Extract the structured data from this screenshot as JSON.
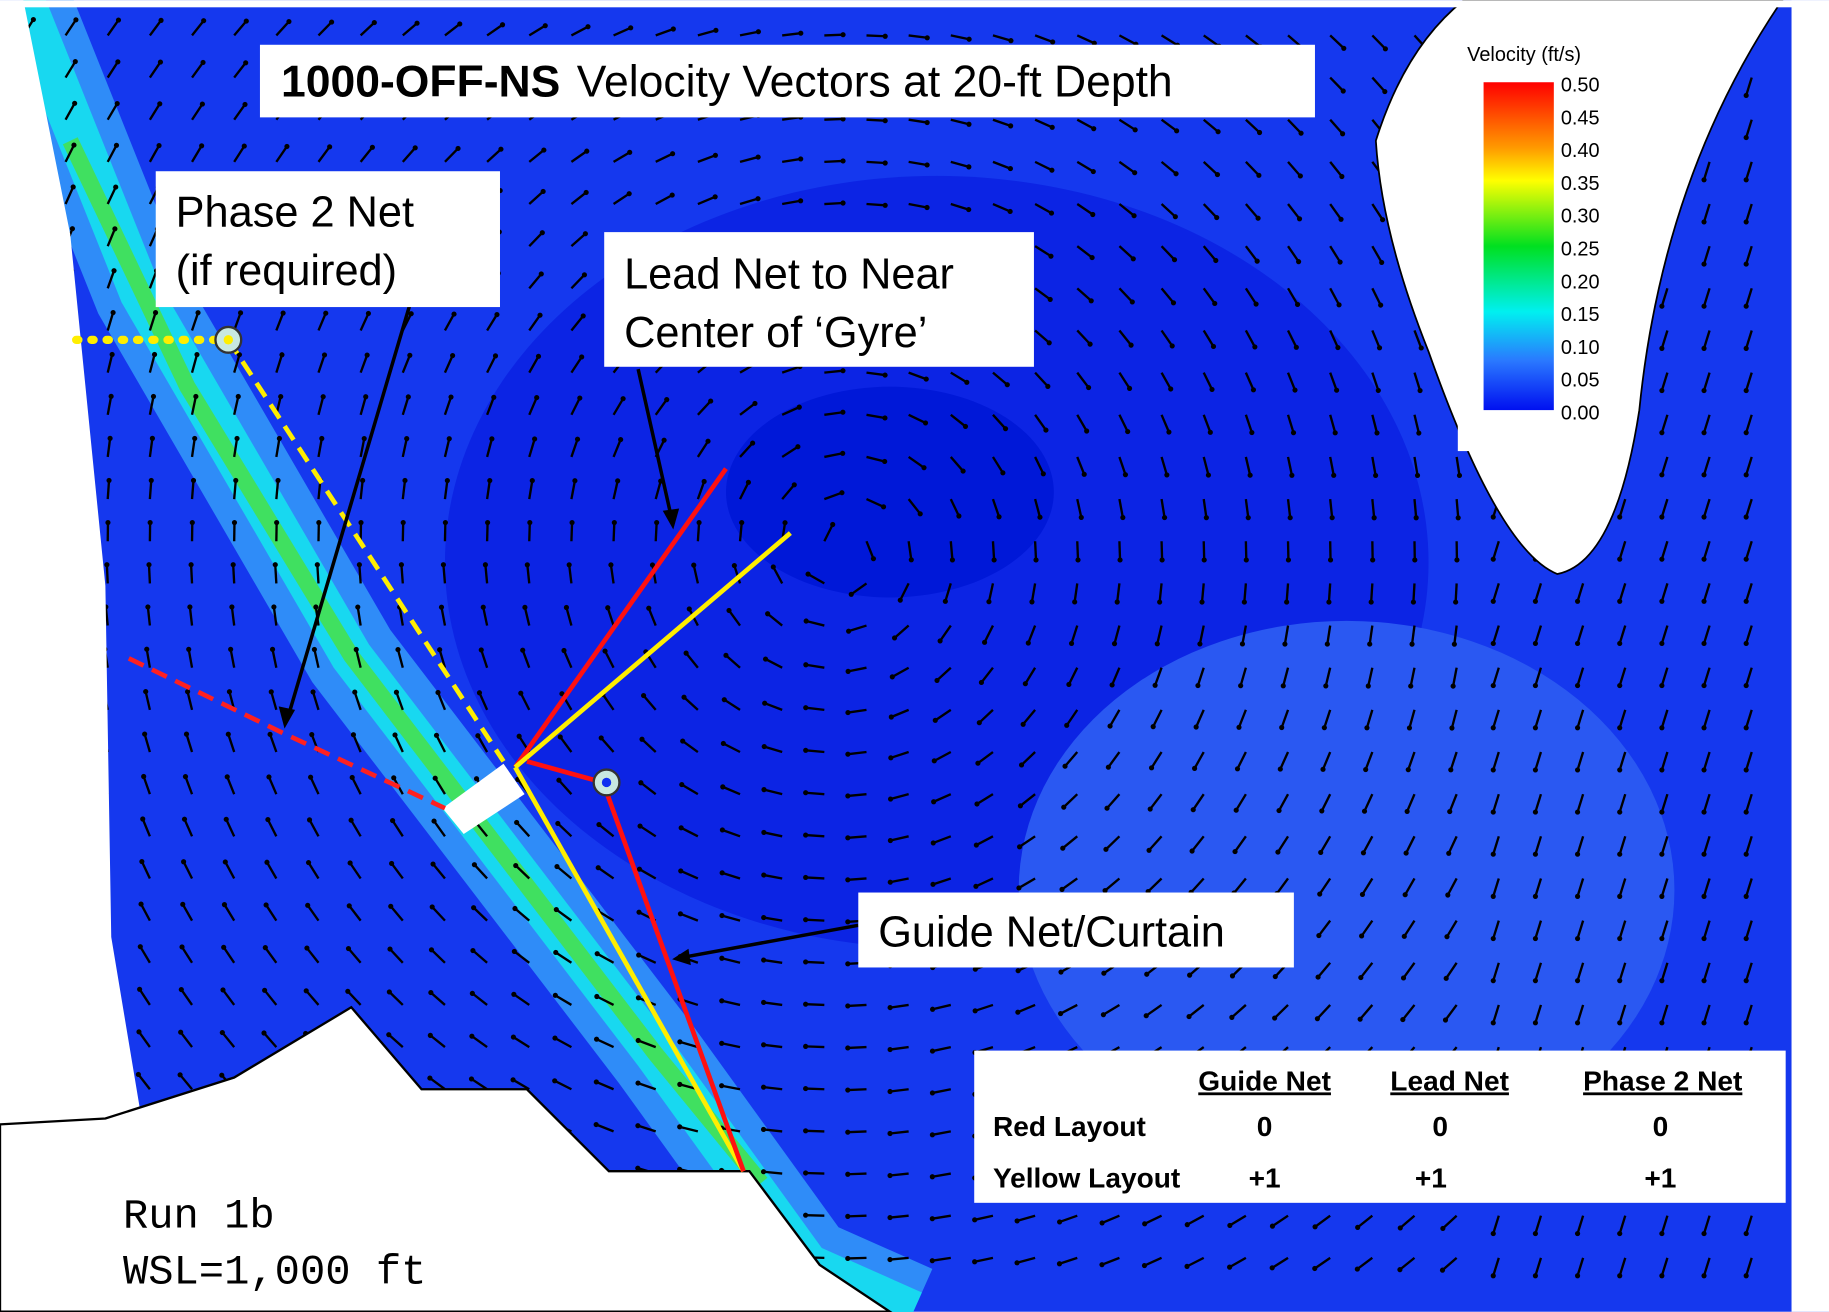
{
  "title": {
    "bold": "1000-OFF-NS",
    "rest": "Velocity Vectors at 20-ft Depth"
  },
  "legend": {
    "title": "Velocity (ft/s)",
    "labels": [
      "0.50",
      "0.45",
      "0.40",
      "0.35",
      "0.30",
      "0.25",
      "0.20",
      "0.15",
      "0.10",
      "0.05",
      "0.00"
    ]
  },
  "callouts": {
    "phase2": [
      "Phase 2 Net",
      "(if required)"
    ],
    "lead": [
      "Lead Net to Near",
      "Center of ‘Gyre’"
    ],
    "guide": [
      "Guide Net/Curtain"
    ]
  },
  "table": {
    "header": [
      "Guide Net",
      "Lead Net",
      "Phase 2 Net"
    ],
    "rows": [
      [
        "Red Layout",
        "0",
        "0",
        "0"
      ],
      [
        "Yellow Layout",
        "+1",
        "+1",
        "+1"
      ]
    ]
  },
  "run_info": [
    "Run 1b",
    "WSL=1,000 ft"
  ]
}
